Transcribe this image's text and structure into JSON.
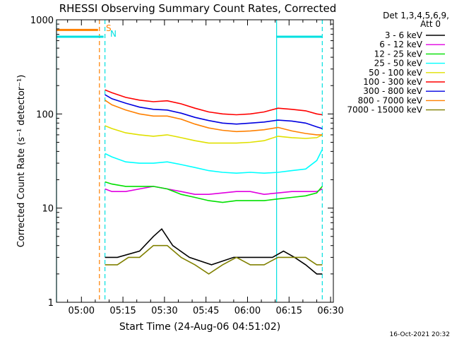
{
  "chart_data": {
    "type": "line",
    "title": "RHESSI Observing Summary Count Rates, Corrected",
    "xlabel": "Start Time (24-Aug-06 04:51:02)",
    "ylabel": "Corrected Count Rate (s⁻¹ detector⁻¹)",
    "y_scale": "log",
    "ylim": [
      1,
      1000
    ],
    "xlim_minutes": [
      0,
      100
    ],
    "x_ticks": [
      {
        "label": "05:00",
        "min": 9
      },
      {
        "label": "05:15",
        "min": 24
      },
      {
        "label": "05:30",
        "min": 39
      },
      {
        "label": "05:45",
        "min": 54
      },
      {
        "label": "06:00",
        "min": 69
      },
      {
        "label": "06:15",
        "min": 84
      },
      {
        "label": "06:30",
        "min": 99
      }
    ],
    "y_ticks": [
      {
        "label": "1",
        "value": 1
      },
      {
        "label": "10",
        "value": 10
      },
      {
        "label": "100",
        "value": 100
      },
      {
        "label": "1000",
        "value": 1000
      }
    ],
    "legend_header": [
      "Det 1,3,4,5,6,9,",
      "Att 0"
    ],
    "legend_placement": "right",
    "annotations": {
      "saa_label": "S",
      "night_label": "N"
    },
    "footer": "16-Oct-2021 20:32",
    "vertical_markers": [
      {
        "kind": "orange-dashed",
        "min": 15.5
      },
      {
        "kind": "cyan-dashed",
        "min": 17.5
      },
      {
        "kind": "cyan-solid",
        "min": 0
      },
      {
        "kind": "cyan-solid",
        "min": 79.5
      },
      {
        "kind": "cyan-dashed",
        "min": 96
      }
    ],
    "flags": [
      {
        "name": "SAA",
        "color": "#ff8000",
        "y": 780,
        "x_range": [
          0,
          15
        ]
      },
      {
        "name": "Night",
        "color": "#00e0e0",
        "y": 660,
        "x_range": [
          0,
          17
        ]
      },
      {
        "name": "Night",
        "color": "#00e0e0",
        "y": 660,
        "x_range": [
          79.5,
          96
        ]
      }
    ],
    "series": [
      {
        "name": "3 - 6 keV",
        "color": "#000000",
        "x": [
          17.5,
          22,
          30,
          35,
          38,
          42,
          48,
          56,
          64,
          72,
          78,
          82,
          86,
          90,
          94,
          96
        ],
        "y": [
          3,
          3,
          3.5,
          5,
          6,
          4,
          3,
          2.5,
          3,
          3,
          3,
          3.5,
          3,
          2.5,
          2,
          2
        ]
      },
      {
        "name": "6 - 12 keV",
        "color": "#e000e0",
        "x": [
          17.5,
          20,
          25,
          30,
          35,
          40,
          45,
          50,
          55,
          60,
          65,
          70,
          75,
          80,
          85,
          90,
          94,
          96
        ],
        "y": [
          16,
          15,
          15,
          16,
          17,
          16,
          15,
          14,
          14,
          14.5,
          15,
          15,
          14,
          14.5,
          15,
          15,
          15,
          16
        ]
      },
      {
        "name": "12 - 25 keV",
        "color": "#00e000",
        "x": [
          17.5,
          20,
          25,
          30,
          35,
          40,
          45,
          50,
          55,
          60,
          65,
          70,
          75,
          80,
          85,
          90,
          94,
          96
        ],
        "y": [
          19,
          18,
          17,
          17,
          17,
          16,
          14,
          13,
          12,
          11.5,
          12,
          12,
          12,
          12.5,
          13,
          13.5,
          14.5,
          17
        ]
      },
      {
        "name": "25 - 50 keV",
        "color": "#00ffff",
        "x": [
          17.5,
          20,
          25,
          30,
          35,
          40,
          45,
          50,
          55,
          60,
          65,
          70,
          75,
          80,
          85,
          90,
          94,
          96
        ],
        "y": [
          38,
          35,
          31,
          30,
          30,
          31,
          29,
          27,
          25,
          24,
          23.5,
          24,
          23.5,
          24,
          25,
          26,
          32,
          42
        ]
      },
      {
        "name": "50 - 100 keV",
        "color": "#e0e000",
        "x": [
          17.5,
          20,
          25,
          30,
          35,
          40,
          45,
          50,
          55,
          60,
          65,
          70,
          75,
          80,
          85,
          90,
          94,
          96
        ],
        "y": [
          75,
          70,
          63,
          60,
          58,
          60,
          56,
          52,
          49,
          49,
          49,
          50,
          52,
          58,
          56,
          55,
          56,
          60
        ]
      },
      {
        "name": "100 - 300 keV",
        "color": "#ff0000",
        "x": [
          17.5,
          20,
          25,
          30,
          35,
          40,
          45,
          50,
          55,
          60,
          65,
          70,
          75,
          80,
          85,
          90,
          94,
          96
        ],
        "y": [
          180,
          168,
          150,
          140,
          135,
          138,
          128,
          115,
          105,
          100,
          98,
          100,
          105,
          115,
          112,
          108,
          100,
          98
        ]
      },
      {
        "name": "300 - 800 keV",
        "color": "#0000e0",
        "x": [
          17.5,
          20,
          25,
          30,
          35,
          40,
          45,
          50,
          55,
          60,
          65,
          70,
          75,
          80,
          85,
          90,
          94,
          96
        ],
        "y": [
          160,
          145,
          130,
          118,
          112,
          110,
          102,
          92,
          85,
          80,
          78,
          80,
          82,
          86,
          84,
          80,
          73,
          70
        ]
      },
      {
        "name": "800 - 7000 keV",
        "color": "#ff8000",
        "x": [
          17.5,
          20,
          25,
          30,
          35,
          40,
          45,
          50,
          55,
          60,
          65,
          70,
          75,
          80,
          85,
          90,
          94,
          96
        ],
        "y": [
          140,
          125,
          110,
          100,
          95,
          95,
          88,
          78,
          71,
          67,
          65,
          66,
          68,
          72,
          66,
          62,
          60,
          60
        ]
      },
      {
        "name": "7000 - 15000 keV",
        "color": "#808000",
        "x": [
          17.5,
          22,
          26,
          30,
          35,
          40,
          45,
          50,
          55,
          60,
          65,
          70,
          75,
          80,
          85,
          90,
          94,
          96
        ],
        "y": [
          2.5,
          2.5,
          3,
          3,
          4,
          4,
          3,
          2.5,
          2,
          2.5,
          3,
          2.5,
          2.5,
          3,
          3,
          3,
          2.5,
          2.5
        ]
      }
    ]
  }
}
